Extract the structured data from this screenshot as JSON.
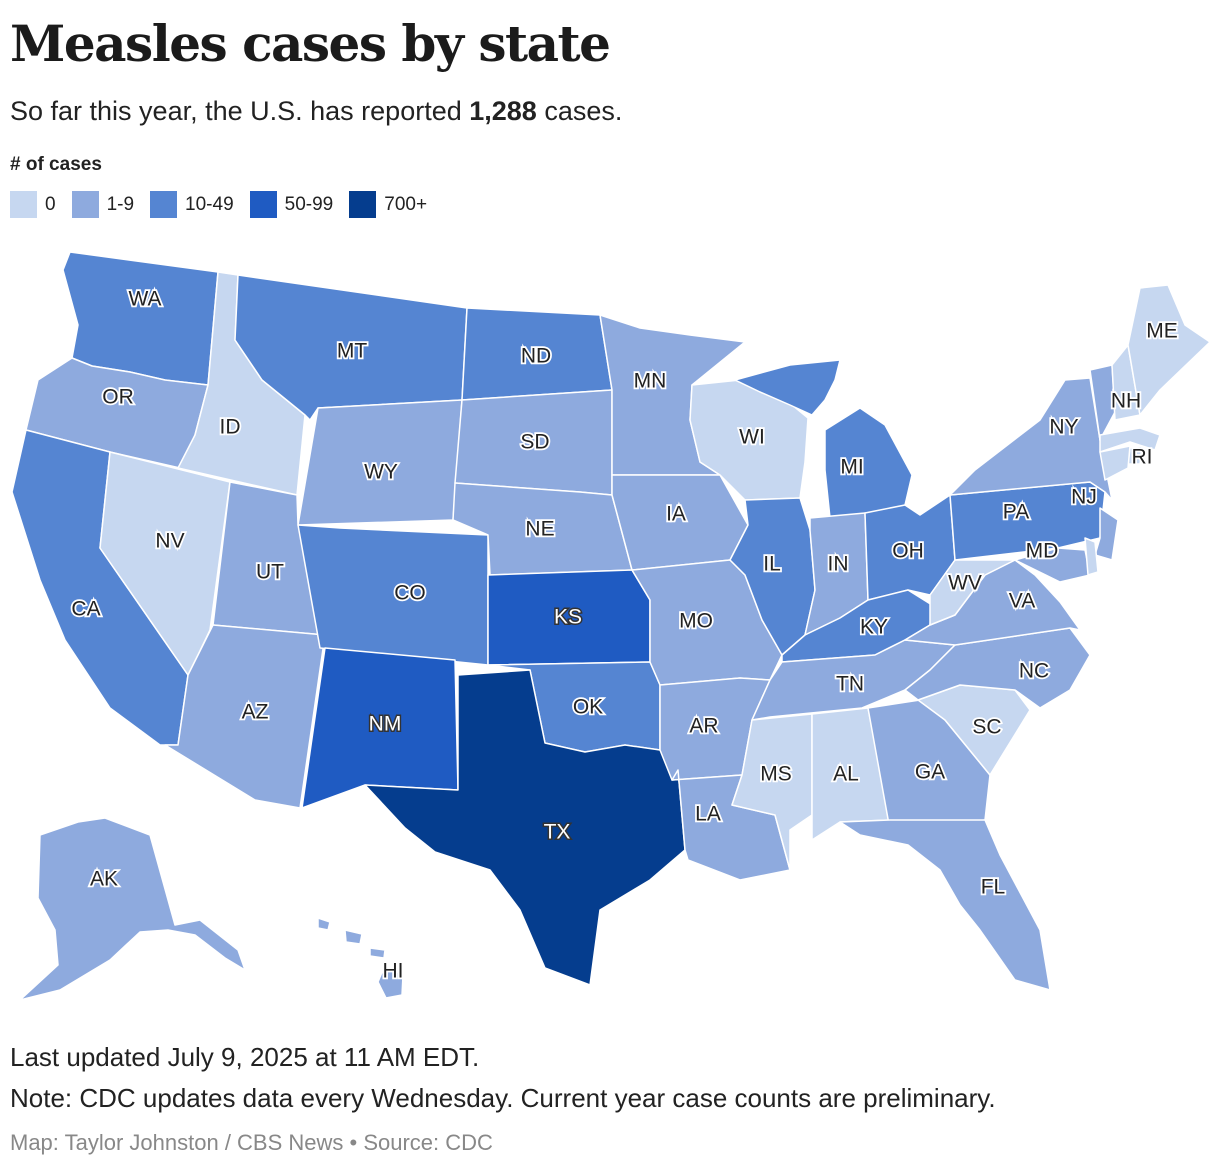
{
  "title": "Measles cases by state",
  "subtitle": {
    "prefix": "So far this year, the U.S. has reported ",
    "total": "1,288",
    "suffix": " cases."
  },
  "legend": {
    "title": "# of cases",
    "bins": [
      {
        "label": "0",
        "color": "#c6d7f0"
      },
      {
        "label": "1-9",
        "color": "#8eaade"
      },
      {
        "label": "10-49",
        "color": "#5585d2"
      },
      {
        "label": "50-99",
        "color": "#1f5bc2"
      },
      {
        "label": "700+",
        "color": "#053d8e"
      }
    ]
  },
  "states": [
    {
      "code": "WA",
      "bin": 2
    },
    {
      "code": "OR",
      "bin": 1
    },
    {
      "code": "CA",
      "bin": 2
    },
    {
      "code": "ID",
      "bin": 0
    },
    {
      "code": "NV",
      "bin": 0
    },
    {
      "code": "MT",
      "bin": 2
    },
    {
      "code": "WY",
      "bin": 1
    },
    {
      "code": "UT",
      "bin": 1
    },
    {
      "code": "AZ",
      "bin": 1
    },
    {
      "code": "CO",
      "bin": 2
    },
    {
      "code": "NM",
      "bin": 3
    },
    {
      "code": "ND",
      "bin": 2
    },
    {
      "code": "SD",
      "bin": 1
    },
    {
      "code": "NE",
      "bin": 1
    },
    {
      "code": "KS",
      "bin": 3
    },
    {
      "code": "OK",
      "bin": 2
    },
    {
      "code": "TX",
      "bin": 4
    },
    {
      "code": "MN",
      "bin": 1
    },
    {
      "code": "IA",
      "bin": 1
    },
    {
      "code": "MO",
      "bin": 1
    },
    {
      "code": "AR",
      "bin": 1
    },
    {
      "code": "LA",
      "bin": 1
    },
    {
      "code": "WI",
      "bin": 0
    },
    {
      "code": "IL",
      "bin": 2
    },
    {
      "code": "MI",
      "bin": 2
    },
    {
      "code": "IN",
      "bin": 1
    },
    {
      "code": "OH",
      "bin": 2
    },
    {
      "code": "KY",
      "bin": 2
    },
    {
      "code": "TN",
      "bin": 1
    },
    {
      "code": "MS",
      "bin": 0
    },
    {
      "code": "AL",
      "bin": 0
    },
    {
      "code": "GA",
      "bin": 1
    },
    {
      "code": "FL",
      "bin": 1
    },
    {
      "code": "SC",
      "bin": 0
    },
    {
      "code": "NC",
      "bin": 1
    },
    {
      "code": "VA",
      "bin": 1
    },
    {
      "code": "WV",
      "bin": 0
    },
    {
      "code": "PA",
      "bin": 2
    },
    {
      "code": "NY",
      "bin": 1
    },
    {
      "code": "NJ",
      "bin": 1
    },
    {
      "code": "MD",
      "bin": 1
    },
    {
      "code": "DE",
      "bin": 0
    },
    {
      "code": "VT",
      "bin": 1
    },
    {
      "code": "NH",
      "bin": 0
    },
    {
      "code": "ME",
      "bin": 0
    },
    {
      "code": "MA",
      "bin": 0
    },
    {
      "code": "RI",
      "bin": 0
    },
    {
      "code": "CT",
      "bin": 0
    },
    {
      "code": "AK",
      "bin": 1
    },
    {
      "code": "HI",
      "bin": 1
    }
  ],
  "footer": {
    "updated": "Last updated July 9, 2025 at 11 AM EDT.",
    "note": "Note: CDC updates data every Wednesday. Current year case counts are preliminary.",
    "credit": "Map: Taylor Johnston / CBS News • Source: CDC"
  }
}
